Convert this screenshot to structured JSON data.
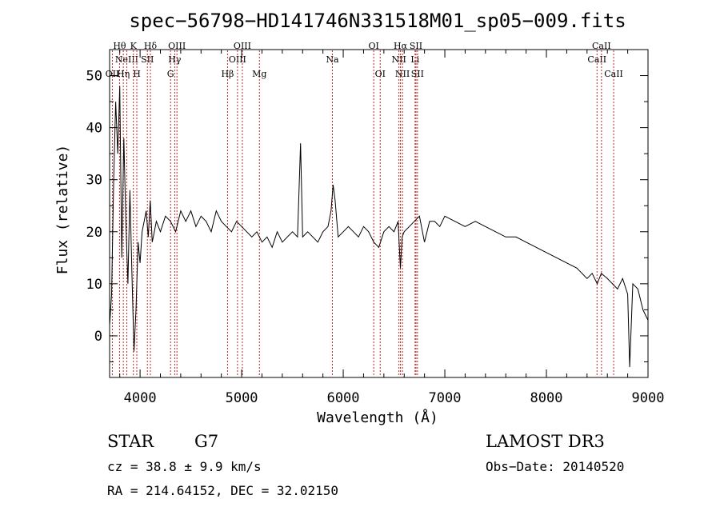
{
  "chart_data": {
    "type": "line",
    "title": "spec−56798−HD141746N331518M01_sp05−009.fits",
    "xlabel": "Wavelength (Å)",
    "ylabel": "Flux (relative)",
    "xlim": [
      3700,
      9000
    ],
    "ylim": [
      -8,
      55
    ],
    "x_ticks": [
      4000,
      5000,
      6000,
      7000,
      8000,
      9000
    ],
    "y_ticks": [
      0,
      10,
      20,
      30,
      40,
      50
    ],
    "grid": false,
    "line_color": "#000000",
    "marker_color": "#cc2222",
    "series": [
      {
        "x": [
          3700,
          3720,
          3740,
          3760,
          3780,
          3800,
          3820,
          3840,
          3860,
          3880,
          3900,
          3920,
          3940,
          3960,
          3980,
          4000,
          4020,
          4040,
          4060,
          4080,
          4100,
          4120,
          4140,
          4160,
          4180,
          4200,
          4250,
          4300,
          4350,
          4400,
          4450,
          4500,
          4550,
          4600,
          4650,
          4700,
          4750,
          4800,
          4850,
          4900,
          4950,
          5000,
          5050,
          5100,
          5150,
          5200,
          5250,
          5300,
          5350,
          5400,
          5450,
          5500,
          5550,
          5580,
          5600,
          5650,
          5700,
          5750,
          5800,
          5850,
          5880,
          5900,
          5920,
          5950,
          6000,
          6050,
          6100,
          6150,
          6200,
          6250,
          6300,
          6350,
          6400,
          6450,
          6500,
          6540,
          6563,
          6580,
          6600,
          6650,
          6700,
          6750,
          6800,
          6850,
          6900,
          6950,
          7000,
          7100,
          7200,
          7300,
          7400,
          7500,
          7600,
          7700,
          7800,
          7900,
          8000,
          8100,
          8200,
          8300,
          8400,
          8450,
          8500,
          8540,
          8600,
          8650,
          8700,
          8750,
          8800,
          8820,
          8850,
          8900,
          8950,
          9000
        ],
        "y": [
          2,
          8,
          30,
          45,
          35,
          48,
          15,
          38,
          22,
          10,
          28,
          12,
          -3,
          5,
          18,
          14,
          20,
          22,
          24,
          19,
          26,
          18,
          20,
          22,
          21,
          20,
          23,
          22,
          20,
          24,
          22,
          24,
          21,
          23,
          22,
          20,
          24,
          22,
          21,
          20,
          22,
          21,
          20,
          19,
          20,
          18,
          19,
          17,
          20,
          18,
          19,
          20,
          19,
          37,
          19,
          20,
          19,
          18,
          20,
          21,
          24,
          29,
          26,
          19,
          20,
          21,
          20,
          19,
          21,
          20,
          18,
          17,
          20,
          21,
          20,
          22,
          13,
          19,
          20,
          21,
          22,
          23,
          18,
          22,
          22,
          21,
          23,
          22,
          21,
          22,
          21,
          20,
          19,
          19,
          18,
          17,
          16,
          15,
          14,
          13,
          11,
          12,
          10,
          12,
          11,
          10,
          9,
          11,
          8,
          -6,
          10,
          9,
          5,
          3
        ]
      }
    ],
    "line_markers": [
      {
        "x": 3727,
        "labels": [
          "OII"
        ],
        "row": 3
      },
      {
        "x": 3798,
        "labels": [
          "Hθ"
        ],
        "row": 1
      },
      {
        "x": 3835,
        "labels": [
          "Hη"
        ],
        "row": 3
      },
      {
        "x": 3869,
        "labels": [
          "NeIII"
        ],
        "row": 2
      },
      {
        "x": 3934,
        "labels": [
          "K"
        ],
        "row": 1
      },
      {
        "x": 3968,
        "labels": [
          "H"
        ],
        "row": 3
      },
      {
        "x": 4072,
        "labels": [
          "SII"
        ],
        "row": 2
      },
      {
        "x": 4102,
        "labels": [
          "Hδ"
        ],
        "row": 1
      },
      {
        "x": 4300,
        "labels": [
          "G"
        ],
        "row": 3
      },
      {
        "x": 4341,
        "labels": [
          "Hγ"
        ],
        "row": 2
      },
      {
        "x": 4363,
        "labels": [
          "OIII"
        ],
        "row": 1
      },
      {
        "x": 4861,
        "labels": [
          "Hβ"
        ],
        "row": 3
      },
      {
        "x": 4959,
        "labels": [
          "OIII"
        ],
        "row": 2
      },
      {
        "x": 5007,
        "labels": [
          "OIII"
        ],
        "row": 1
      },
      {
        "x": 5175,
        "labels": [
          "Mg"
        ],
        "row": 3
      },
      {
        "x": 5893,
        "labels": [
          "Na"
        ],
        "row": 2
      },
      {
        "x": 6300,
        "labels": [
          "OI"
        ],
        "row": 1
      },
      {
        "x": 6364,
        "labels": [
          "OI"
        ],
        "row": 3
      },
      {
        "x": 6548,
        "labels": [
          "NII"
        ],
        "row": 2
      },
      {
        "x": 6563,
        "labels": [
          "Hα"
        ],
        "row": 1
      },
      {
        "x": 6583,
        "labels": [
          "NII"
        ],
        "row": 3
      },
      {
        "x": 6707,
        "labels": [
          "Li"
        ],
        "row": 2
      },
      {
        "x": 6716,
        "labels": [
          "SII"
        ],
        "row": 1
      },
      {
        "x": 6731,
        "labels": [
          "SII"
        ],
        "row": 3
      },
      {
        "x": 8498,
        "labels": [
          "CaII"
        ],
        "row": 2
      },
      {
        "x": 8542,
        "labels": [
          "CaII"
        ],
        "row": 1
      },
      {
        "x": 8662,
        "labels": [
          "CaII"
        ],
        "row": 3
      }
    ]
  },
  "info": {
    "object_class": "STAR",
    "subclass": "G7",
    "survey": "LAMOST DR3",
    "redshift": "cz = 38.8 ± 9.9 km/s",
    "obs_date": "Obs−Date: 20140520",
    "coords": "RA = 214.64152, DEC =  32.02150"
  }
}
